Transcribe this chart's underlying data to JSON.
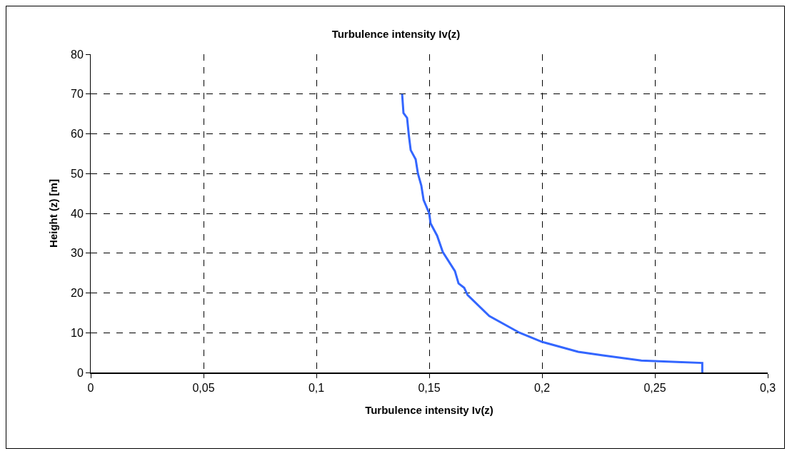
{
  "chart_data": {
    "type": "line",
    "title": "Turbulence intensity Iv(z)",
    "xlabel": "Turbulence intensity Iv(z)",
    "ylabel": "Height (z) [m]",
    "x": [
      0.271,
      0.271,
      0.244,
      0.227,
      0.216,
      0.2,
      0.19,
      0.1766,
      0.167,
      0.1655,
      0.163,
      0.1614,
      0.156,
      0.1535,
      0.1506,
      0.15,
      0.1475,
      0.1465,
      0.145,
      0.144,
      0.1418,
      0.141,
      0.1402,
      0.1386,
      0.138
    ],
    "series": [
      {
        "color": "#3366ff",
        "values": [
          0,
          2.4,
          3,
          4.3,
          5.2,
          7.7,
          10,
          14.2,
          19.5,
          21.3,
          22.4,
          25.5,
          30.3,
          34.4,
          37.5,
          40,
          43.4,
          47,
          50,
          53.6,
          55.9,
          59.5,
          64,
          65.2,
          70
        ]
      }
    ],
    "xlim": [
      0,
      0.3
    ],
    "xticks": [
      0,
      {
        "value": 0.05,
        "label": "0,05"
      },
      {
        "value": 0.1,
        "label": "0,1"
      },
      {
        "value": 0.15,
        "label": "0,15"
      },
      {
        "value": 0.2,
        "label": "0,2"
      },
      {
        "value": 0.25,
        "label": "0,25"
      },
      {
        "value": 0.3,
        "label": "0,3"
      }
    ],
    "ylim": [
      0,
      80
    ],
    "yticks": [
      0,
      10,
      20,
      30,
      40,
      50,
      60,
      70,
      80
    ],
    "grid": true,
    "marker": "none",
    "line_style": "solid"
  }
}
